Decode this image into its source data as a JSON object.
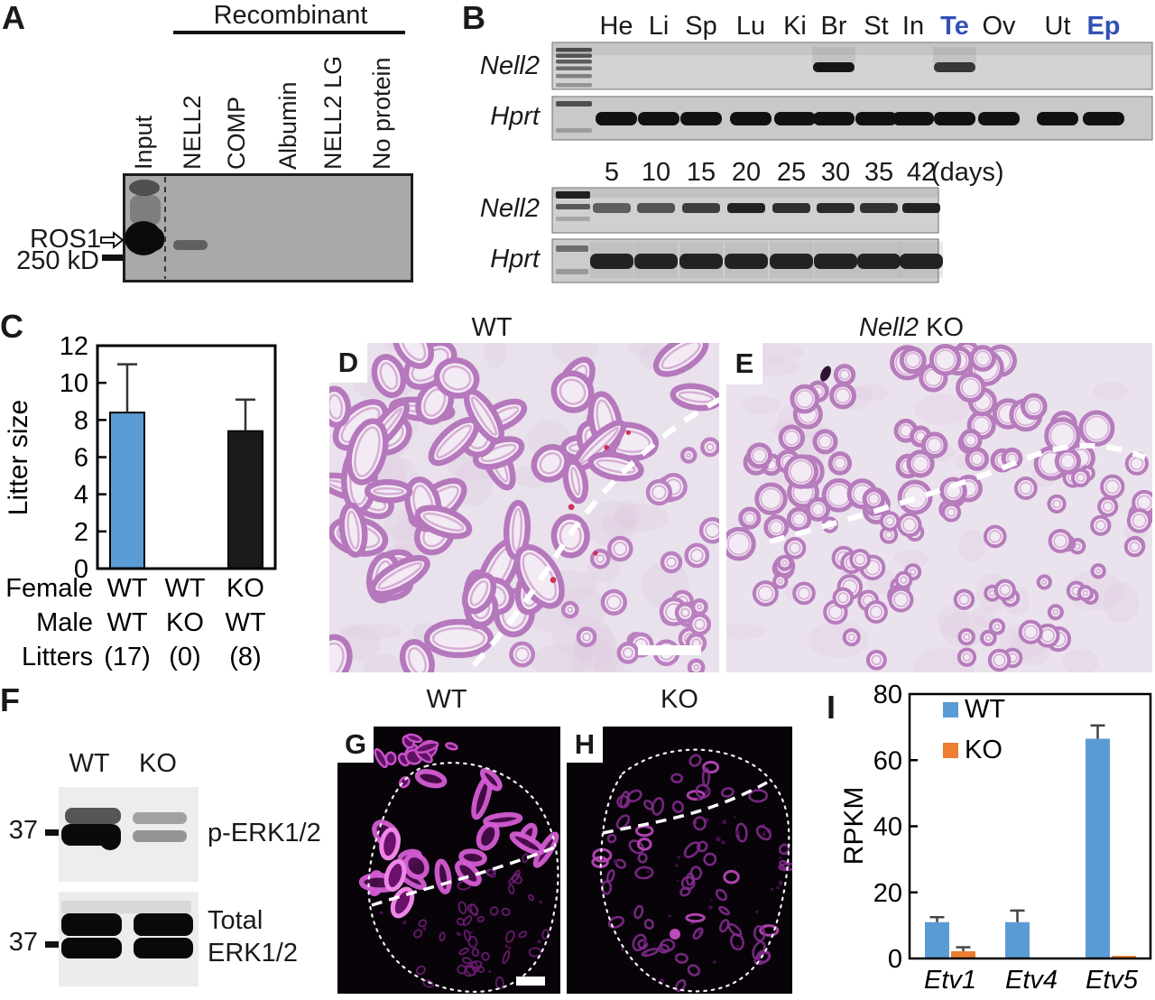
{
  "panels": {
    "a": {
      "letter": "A",
      "group_header": "Recombinant",
      "lane_labels": [
        "Input",
        "NELL2",
        "COMP",
        "Albumin",
        "NELL2 LG",
        "No protein"
      ],
      "band_label": "ROS1",
      "marker_label": "250 kD",
      "bands": {
        "Input": "strong",
        "NELL2": "faint",
        "COMP": "none",
        "Albumin": "none",
        "NELL2 LG": "none",
        "No protein": "none"
      }
    },
    "b": {
      "letter": "B",
      "tissue_labels": [
        "He",
        "Li",
        "Sp",
        "Lu",
        "Ki",
        "Br",
        "St",
        "In",
        "Te",
        "Ov",
        "Ut",
        "Ep"
      ],
      "highlighted_tissues": [
        "Te",
        "Ep"
      ],
      "highlight_color": "#3351b5",
      "gene_rows": [
        "Nell2",
        "Hprt"
      ],
      "nell2_positive_tissues": [
        "Br",
        "Te"
      ],
      "day_labels": [
        "5",
        "10",
        "15",
        "20",
        "25",
        "30",
        "35",
        "42"
      ],
      "day_unit": "(days)",
      "nell2_day_band_intensity": [
        0.62,
        0.68,
        0.8,
        0.95,
        0.88,
        0.9,
        0.85,
        0.95
      ]
    },
    "c": {
      "letter": "C"
    },
    "d": {
      "letter": "D",
      "title": "WT"
    },
    "e": {
      "letter": "E",
      "title_gene": "Nell2",
      "title_rest": "KO"
    },
    "f": {
      "letter": "F",
      "lane_labels": [
        "WT",
        "KO"
      ],
      "marker_top": "37",
      "marker_bottom": "37",
      "blot_top_label": "p-ERK1/2",
      "blot_bottom_label": [
        "Total",
        "ERK1/2"
      ]
    },
    "g": {
      "letter": "G",
      "title": "WT"
    },
    "h": {
      "letter": "H",
      "title": "KO"
    },
    "i": {
      "letter": "I"
    }
  },
  "chart_data": [
    {
      "id": "litter-size",
      "type": "bar",
      "ylabel": "Litter size",
      "ylim": [
        0,
        12
      ],
      "yticks": [
        0,
        2,
        4,
        6,
        8,
        10,
        12
      ],
      "categories": [
        "Female WT / Male WT",
        "Female WT / Male KO",
        "Female KO / Male WT"
      ],
      "values": [
        8.4,
        0,
        7.4
      ],
      "errors_plus": [
        2.6,
        0,
        1.7
      ],
      "bar_colors": [
        "#5b9bd5",
        "#1a1a1a",
        "#1a1a1a"
      ],
      "cross_table": {
        "rows": [
          {
            "label": "Female",
            "cells": [
              "WT",
              "WT",
              "KO"
            ]
          },
          {
            "label": "Male",
            "cells": [
              "WT",
              "KO",
              "WT"
            ]
          },
          {
            "label": "Litters",
            "cells": [
              "(17)",
              "(0)",
              "(8)"
            ]
          }
        ]
      },
      "grid": false
    },
    {
      "id": "rpkm",
      "type": "bar",
      "ylabel": "RPKM",
      "ylim": [
        0,
        80
      ],
      "yticks": [
        0,
        20,
        40,
        60,
        80
      ],
      "categories": [
        "Etv1",
        "Etv4",
        "Etv5"
      ],
      "series": [
        {
          "name": "WT",
          "color": "#5b9bd5",
          "values": [
            11,
            11,
            66.5
          ],
          "errors_plus": [
            1.5,
            3.5,
            4
          ]
        },
        {
          "name": "KO",
          "color": "#ed7d31",
          "values": [
            2.2,
            0,
            0.8
          ],
          "errors_plus": [
            1.2,
            0,
            0
          ]
        }
      ],
      "legend_position": "top-left",
      "grid": false
    }
  ]
}
